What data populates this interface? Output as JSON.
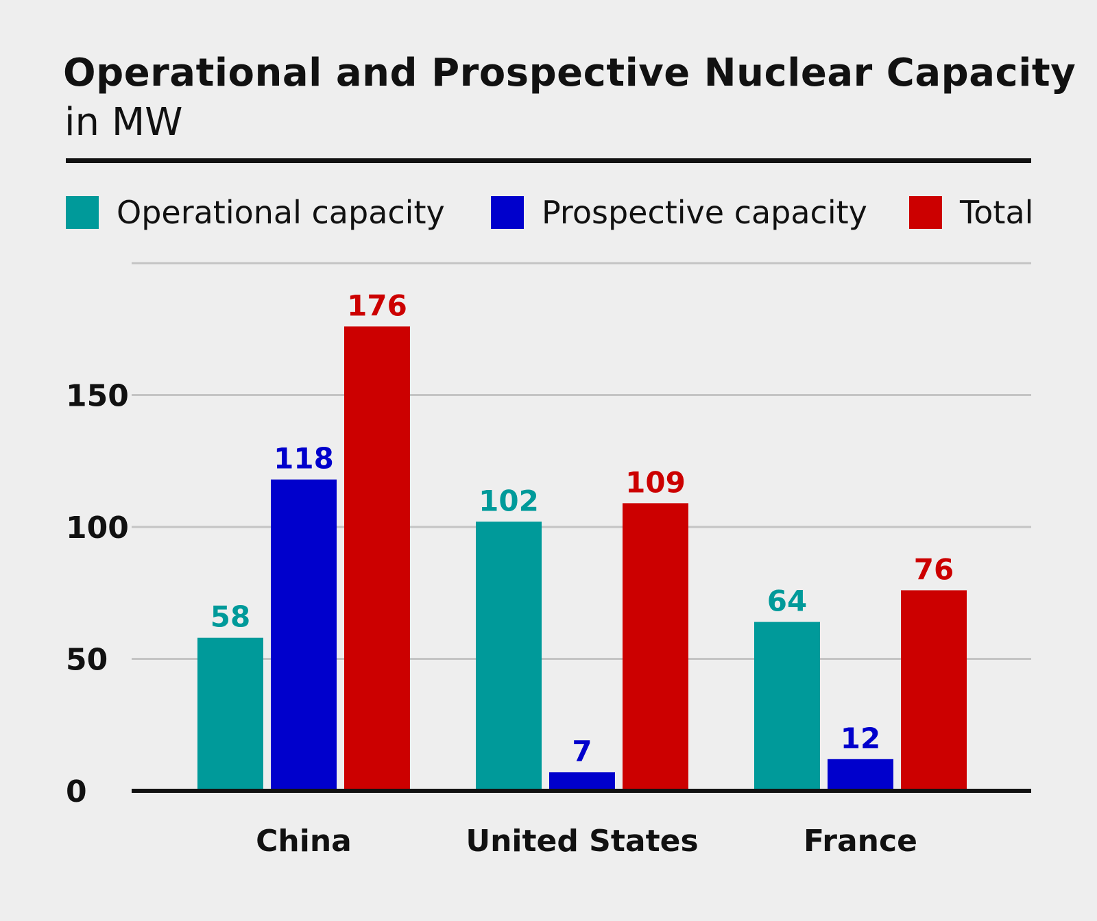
{
  "header": {
    "title": "Operational and Prospective Nuclear Capacity",
    "subtitle": "in MW"
  },
  "legend": [
    {
      "label": "Operational capacity",
      "color": "#009a9a"
    },
    {
      "label": "Prospective capacity",
      "color": "#0000cc"
    },
    {
      "label": "Total",
      "color": "#cc0000"
    }
  ],
  "chart_data": {
    "type": "bar",
    "title": "Operational and Prospective Nuclear Capacity",
    "subtitle": "in MW",
    "categories": [
      "China",
      "United States",
      "France"
    ],
    "series": [
      {
        "name": "Operational capacity",
        "color": "#009a9a",
        "values": [
          58,
          102,
          64
        ]
      },
      {
        "name": "Prospective capacity",
        "color": "#0000cc",
        "values": [
          118,
          7,
          12
        ]
      },
      {
        "name": "Total",
        "color": "#cc0000",
        "values": [
          176,
          109,
          76
        ]
      }
    ],
    "ylim": [
      0,
      200
    ],
    "yticks": [
      0,
      50,
      100,
      150
    ],
    "grid": true,
    "legend_position": "top",
    "data_labels": true
  }
}
